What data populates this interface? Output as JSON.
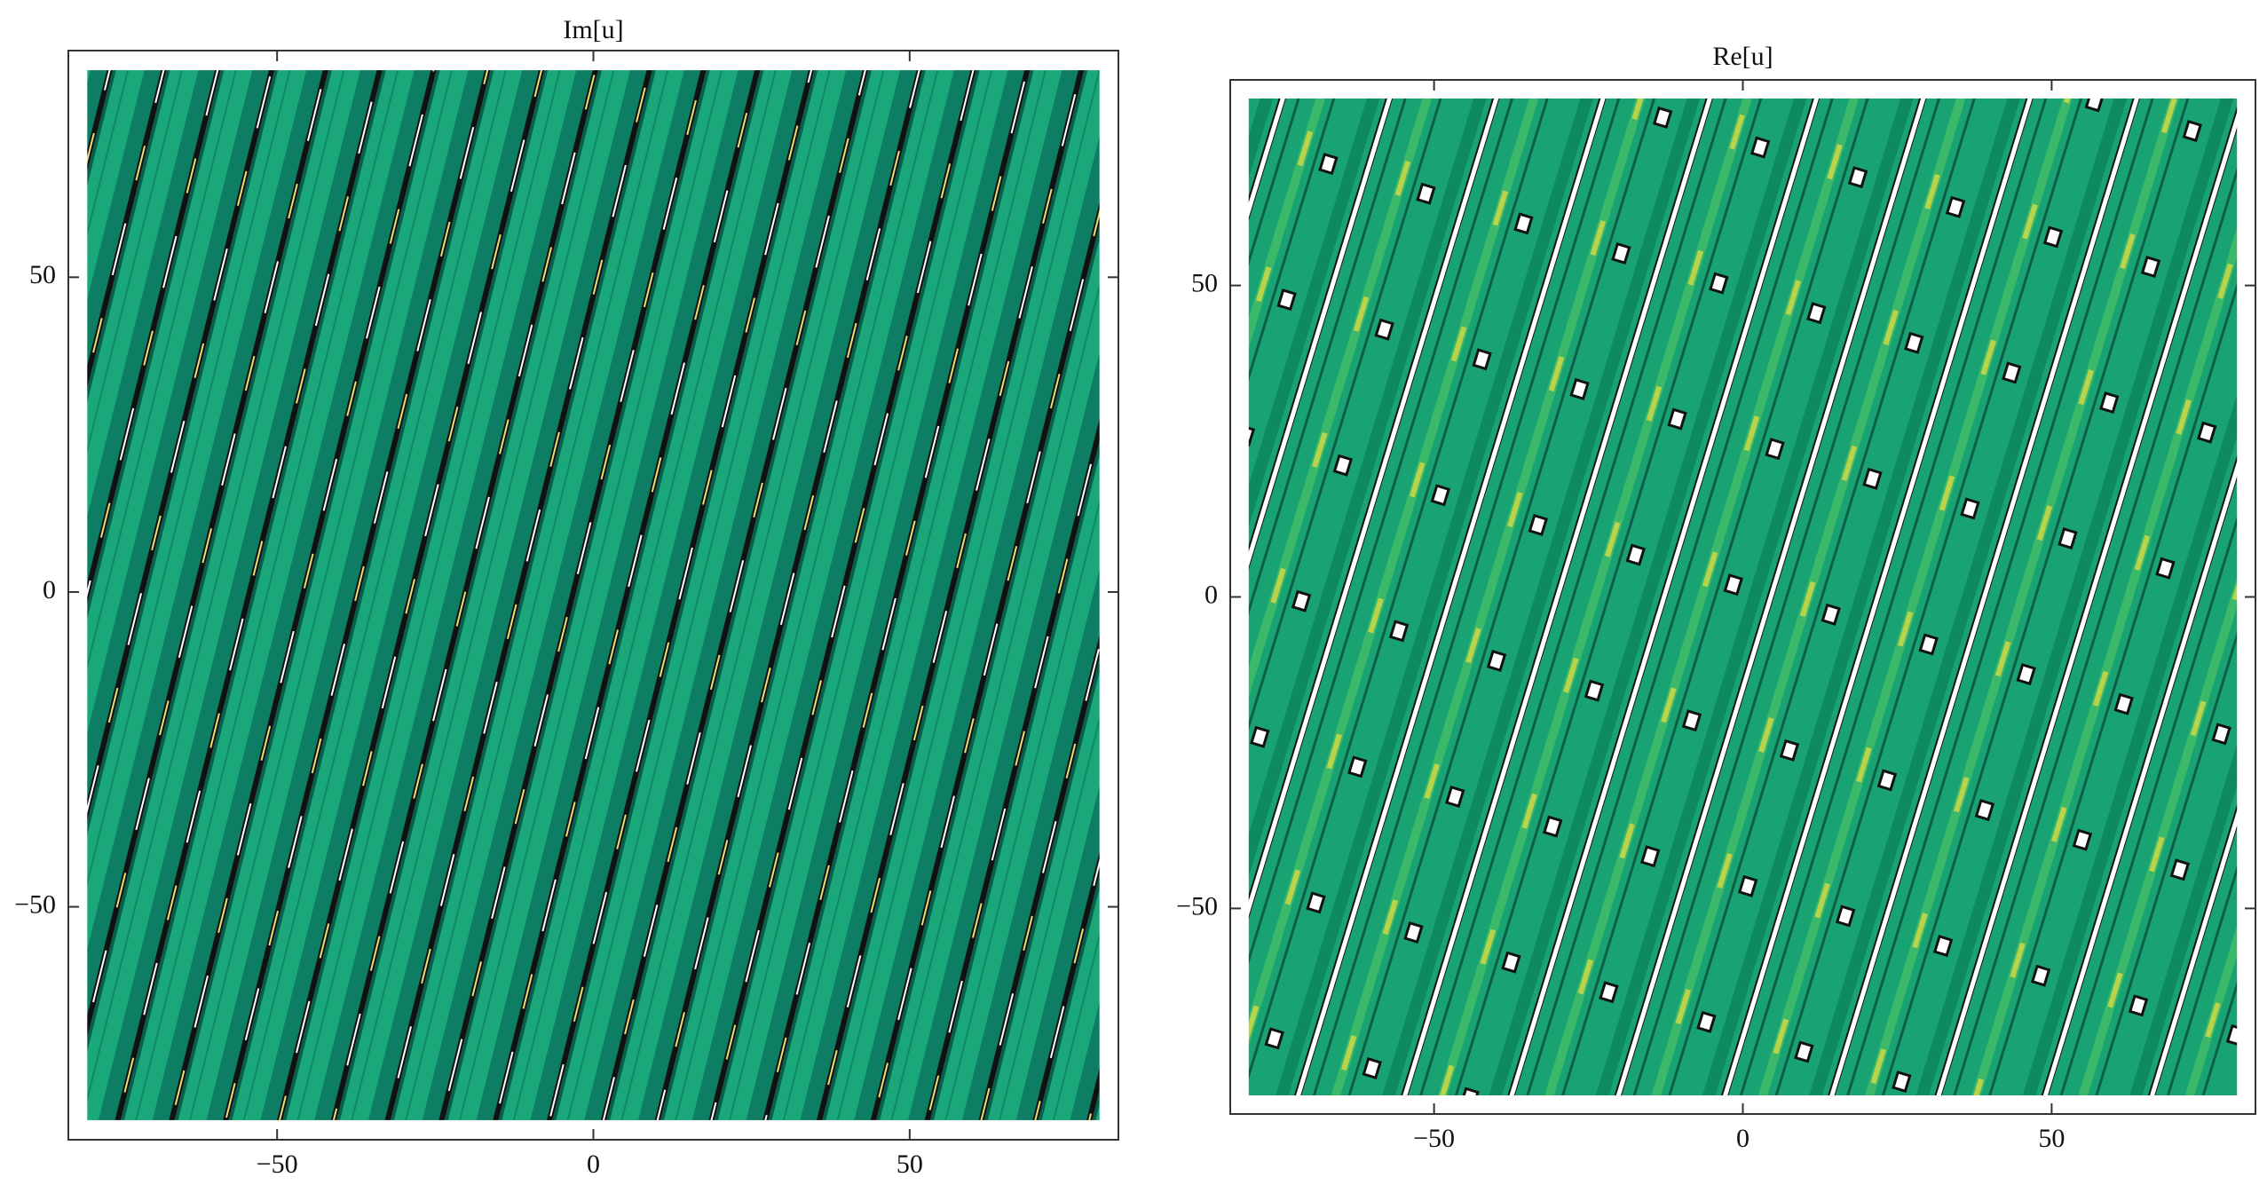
{
  "chart_data": [
    {
      "type": "contour",
      "title": "Im[u]",
      "xlim": [
        -83,
        83
      ],
      "ylim": [
        -87,
        86
      ],
      "xticks": [
        {
          "value": -50,
          "label": "−50"
        },
        0,
        50
      ],
      "yticks": [
        {
          "value": -50,
          "label": "−50"
        },
        0,
        50
      ]
    },
    {
      "type": "contour",
      "title": "Re[u]",
      "xlim": [
        -83,
        83
      ],
      "ylim": [
        -83,
        83
      ],
      "xticks": [
        {
          "value": -50,
          "label": "−50"
        },
        0,
        50
      ],
      "yticks": [
        {
          "value": -50,
          "label": "−50"
        },
        0,
        50
      ]
    }
  ]
}
